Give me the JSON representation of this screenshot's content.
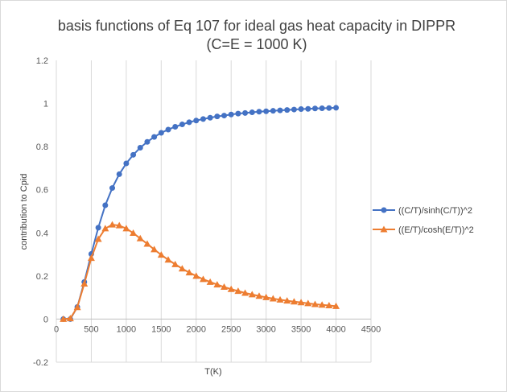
{
  "chart_data": {
    "type": "line",
    "title": "basis functions of Eq 107 for ideal gas heat capacity in DIPPR",
    "subtitle": "(C=E = 1000 K)",
    "xlabel": "T(K)",
    "ylabel": "contribution to Cpid",
    "xlim": [
      0,
      4500
    ],
    "ylim": [
      -0.2,
      1.2
    ],
    "xticks": [
      0,
      500,
      1000,
      1500,
      2000,
      2500,
      3000,
      3500,
      4000,
      4500
    ],
    "yticks": [
      -0.2,
      0,
      0.2,
      0.4,
      0.6,
      0.8,
      1,
      1.2
    ],
    "xtick_labels": [
      "0",
      "500",
      "1000",
      "1500",
      "2000",
      "2500",
      "3000",
      "3500",
      "4000",
      "4500"
    ],
    "ytick_labels": [
      "-0.2",
      "0",
      "0.2",
      "0.4",
      "0.6",
      "0.8",
      "1",
      "1.2"
    ],
    "grid": "vertical",
    "legend_position": "right",
    "x": [
      100,
      200,
      300,
      400,
      500,
      600,
      700,
      800,
      900,
      1000,
      1100,
      1200,
      1300,
      1400,
      1500,
      1600,
      1700,
      1800,
      1900,
      2000,
      2100,
      2200,
      2300,
      2400,
      2500,
      2600,
      2700,
      2800,
      2900,
      3000,
      3100,
      3200,
      3300,
      3400,
      3500,
      3600,
      3700,
      3800,
      3900,
      4000
    ],
    "series": [
      {
        "name": "((C/T)/sinh(C/T))^2",
        "color": "#4472c4",
        "marker": "circle",
        "values": [
          0.0,
          0.0,
          0.056,
          0.172,
          0.302,
          0.424,
          0.528,
          0.608,
          0.672,
          0.722,
          0.762,
          0.795,
          0.822,
          0.845,
          0.864,
          0.879,
          0.892,
          0.903,
          0.913,
          0.921,
          0.928,
          0.934,
          0.94,
          0.944,
          0.949,
          0.953,
          0.956,
          0.959,
          0.962,
          0.964,
          0.966,
          0.968,
          0.97,
          0.972,
          0.974,
          0.975,
          0.977,
          0.978,
          0.979,
          0.98
        ]
      },
      {
        "name": "((E/T)/cosh(E/T))^2",
        "color": "#ed7d31",
        "marker": "triangle",
        "values": [
          0.0,
          0.003,
          0.055,
          0.164,
          0.283,
          0.371,
          0.42,
          0.438,
          0.434,
          0.42,
          0.399,
          0.374,
          0.349,
          0.323,
          0.298,
          0.275,
          0.254,
          0.234,
          0.216,
          0.2,
          0.185,
          0.172,
          0.16,
          0.149,
          0.139,
          0.13,
          0.121,
          0.114,
          0.107,
          0.101,
          0.095,
          0.09,
          0.085,
          0.081,
          0.077,
          0.073,
          0.069,
          0.066,
          0.063,
          0.06
        ]
      }
    ]
  }
}
